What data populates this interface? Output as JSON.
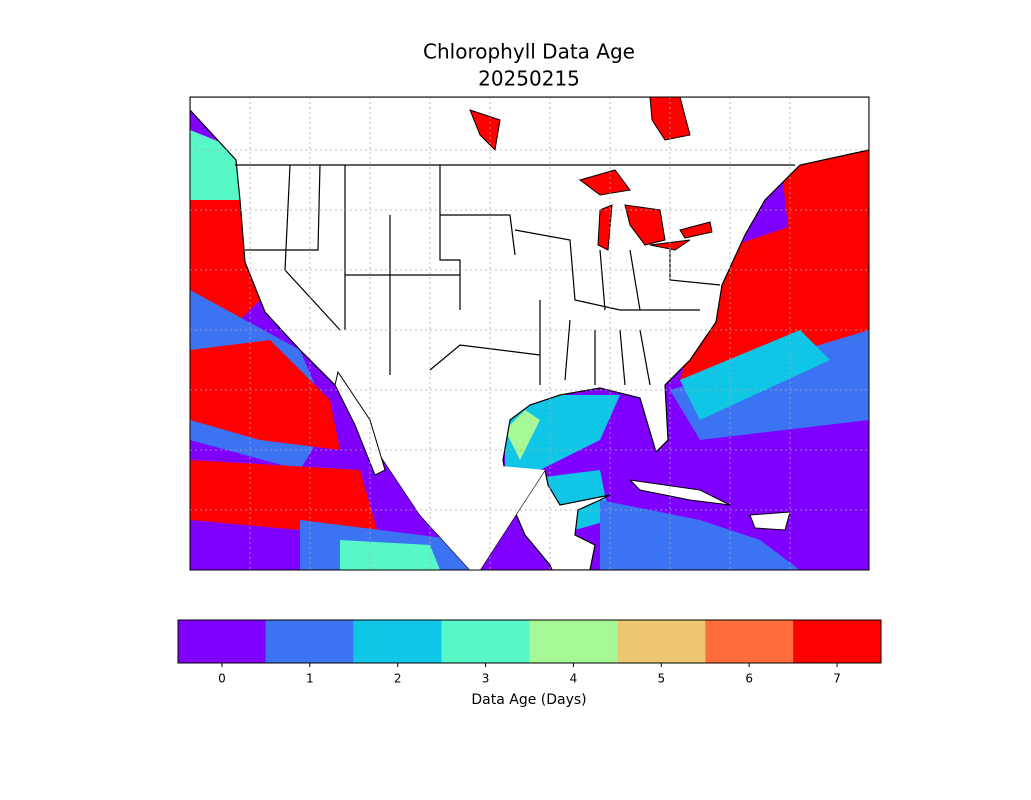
{
  "title": "Chlorophyll Data Age",
  "subtitle": "20250215",
  "colorbar": {
    "label": "Data Age (Days)",
    "ticks": [
      0,
      1,
      2,
      3,
      4,
      5,
      6,
      7
    ],
    "colors": [
      "#7f00ff",
      "#3c73f2",
      "#10c6e6",
      "#58f7c8",
      "#a6f795",
      "#eec870",
      "#ff6d3a",
      "#ff0000"
    ]
  }
}
